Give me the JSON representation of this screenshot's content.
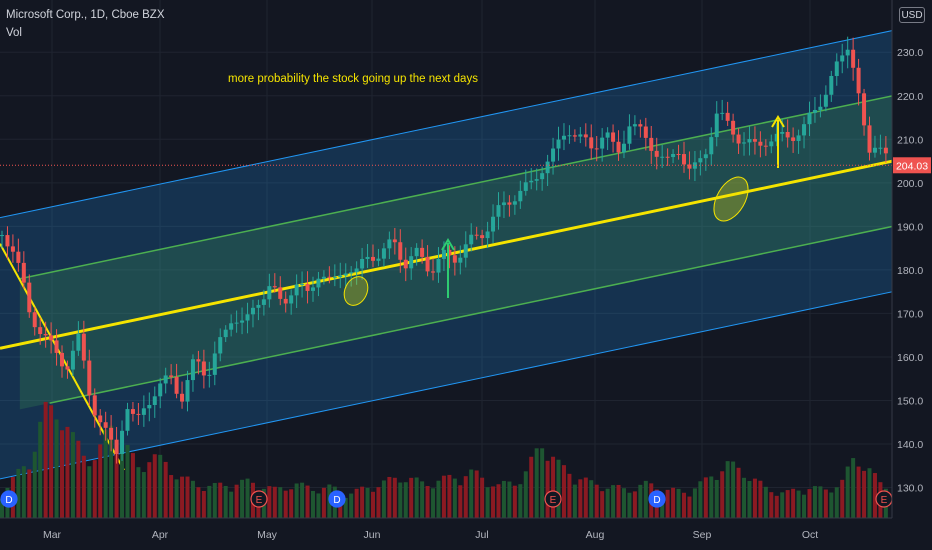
{
  "header": {
    "title": "Microsoft Corp., 1D, Cboe BZX",
    "subtitle": "Vol",
    "currency_button": "USD"
  },
  "annotations": {
    "note": "more probability the stock going up the next days"
  },
  "colors": {
    "background": "#131722",
    "up_candle": "#26a69a",
    "down_candle": "#ef5350",
    "up_volume": "#1e5631",
    "down_volume": "#8b1a22",
    "outer_channel": "#2196f3",
    "inner_channel": "#4caf50",
    "median_line": "#f5e400",
    "price_tag": "#ef5350"
  },
  "chart_data": {
    "type": "candlestick",
    "symbol": "Microsoft Corp.",
    "interval": "1D",
    "exchange": "Cboe BZX",
    "price_axis": {
      "ticks": [
        230,
        220,
        210,
        200,
        190,
        180,
        170,
        160,
        150,
        140,
        130
      ],
      "ylim": [
        123,
        242
      ],
      "last_price": "204.03"
    },
    "time_axis": {
      "ticks": [
        "Mar",
        "Apr",
        "May",
        "Jun",
        "Jul",
        "Aug",
        "Sep",
        "Oct"
      ]
    },
    "close_series": [
      [
        0,
        188
      ],
      [
        4,
        186
      ],
      [
        7,
        180
      ],
      [
        11,
        170
      ],
      [
        16,
        166
      ],
      [
        21,
        161
      ],
      [
        26,
        158
      ],
      [
        31,
        164
      ],
      [
        36,
        150
      ],
      [
        41,
        143
      ],
      [
        46,
        138
      ],
      [
        50,
        149
      ],
      [
        54,
        144
      ],
      [
        58,
        150
      ],
      [
        63,
        152
      ],
      [
        68,
        156
      ],
      [
        73,
        150
      ],
      [
        78,
        160
      ],
      [
        83,
        156
      ],
      [
        88,
        163
      ],
      [
        93,
        170
      ],
      [
        98,
        167
      ],
      [
        103,
        173
      ],
      [
        108,
        176
      ],
      [
        113,
        172
      ],
      [
        118,
        177
      ],
      [
        123,
        174
      ],
      [
        128,
        180
      ],
      [
        133,
        176
      ],
      [
        138,
        181
      ],
      [
        143,
        179
      ],
      [
        148,
        184
      ],
      [
        153,
        183
      ],
      [
        158,
        187
      ],
      [
        163,
        181
      ],
      [
        168,
        184
      ],
      [
        173,
        180
      ],
      [
        178,
        183
      ],
      [
        183,
        183
      ],
      [
        188,
        186
      ],
      [
        193,
        188
      ],
      [
        198,
        192
      ],
      [
        203,
        195
      ],
      [
        208,
        198
      ],
      [
        213,
        199
      ],
      [
        218,
        204
      ],
      [
        223,
        207
      ],
      [
        228,
        213
      ],
      [
        233,
        210
      ],
      [
        238,
        208
      ],
      [
        243,
        212
      ],
      [
        248,
        206
      ],
      [
        253,
        214
      ],
      [
        258,
        211
      ],
      [
        263,
        208
      ],
      [
        268,
        204
      ],
      [
        273,
        208
      ],
      [
        278,
        202
      ],
      [
        283,
        206
      ],
      [
        288,
        216
      ],
      [
        293,
        213
      ],
      [
        298,
        210
      ],
      [
        303,
        208
      ],
      [
        308,
        210
      ],
      [
        313,
        210
      ],
      [
        318,
        211
      ],
      [
        323,
        212
      ],
      [
        328,
        217
      ],
      [
        333,
        222
      ],
      [
        338,
        228
      ],
      [
        341,
        232
      ],
      [
        344,
        226
      ],
      [
        347,
        213
      ],
      [
        350,
        206
      ],
      [
        353,
        211
      ],
      [
        356,
        207
      ],
      [
        358,
        204
      ]
    ],
    "volume_series": [
      [
        0,
        0.22
      ],
      [
        5,
        0.35
      ],
      [
        12,
        0.55
      ],
      [
        17,
        0.92
      ],
      [
        22,
        1.0
      ],
      [
        28,
        0.7
      ],
      [
        33,
        0.6
      ],
      [
        38,
        0.5
      ],
      [
        44,
        0.85
      ],
      [
        49,
        0.65
      ],
      [
        55,
        0.45
      ],
      [
        60,
        0.55
      ],
      [
        66,
        0.48
      ],
      [
        72,
        0.36
      ],
      [
        78,
        0.3
      ],
      [
        85,
        0.28
      ],
      [
        92,
        0.3
      ],
      [
        100,
        0.32
      ],
      [
        110,
        0.25
      ],
      [
        118,
        0.3
      ],
      [
        125,
        0.26
      ],
      [
        132,
        0.27
      ],
      [
        140,
        0.22
      ],
      [
        148,
        0.27
      ],
      [
        155,
        0.32
      ],
      [
        162,
        0.37
      ],
      [
        170,
        0.3
      ],
      [
        180,
        0.35
      ],
      [
        190,
        0.4
      ],
      [
        200,
        0.28
      ],
      [
        210,
        0.35
      ],
      [
        218,
        0.68
      ],
      [
        225,
        0.45
      ],
      [
        232,
        0.37
      ],
      [
        238,
        0.3
      ],
      [
        245,
        0.28
      ],
      [
        252,
        0.25
      ],
      [
        260,
        0.3
      ],
      [
        268,
        0.25
      ],
      [
        276,
        0.23
      ],
      [
        284,
        0.33
      ],
      [
        292,
        0.48
      ],
      [
        300,
        0.4
      ],
      [
        308,
        0.26
      ],
      [
        316,
        0.22
      ],
      [
        324,
        0.27
      ],
      [
        332,
        0.25
      ],
      [
        339,
        0.32
      ],
      [
        344,
        0.55
      ],
      [
        349,
        0.45
      ],
      [
        354,
        0.3
      ],
      [
        358,
        0.27
      ]
    ],
    "pitchfork": {
      "median_start": [
        0,
        162
      ],
      "median_end": [
        360,
        205
      ],
      "inner_offset": 15,
      "outer_offset": 30
    },
    "event_markers": [
      {
        "label": "D",
        "type": "dividend"
      },
      {
        "label": "E",
        "type": "earnings"
      },
      {
        "label": "D",
        "type": "dividend"
      },
      {
        "label": "E",
        "type": "earnings"
      },
      {
        "label": "D",
        "type": "dividend"
      },
      {
        "label": "E",
        "type": "earnings"
      }
    ]
  }
}
